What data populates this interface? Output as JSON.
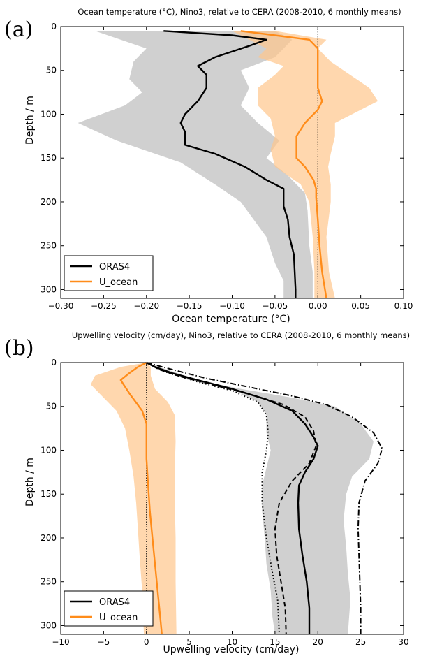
{
  "chart_data": [
    {
      "panel_label": "(a)",
      "type": "line",
      "title": "Ocean temperature (°C), Nino3, relative to CERA (2008-2010, 6 monthly means)",
      "xlabel": "Ocean temperature (°C)",
      "ylabel": "Depth / m",
      "xlim": [
        -0.3,
        0.1
      ],
      "ylim": [
        310,
        0
      ],
      "xticks": [
        -0.3,
        -0.25,
        -0.2,
        -0.15,
        -0.1,
        -0.05,
        0.0,
        0.05,
        0.1
      ],
      "xtick_labels": [
        "−0.30",
        "−0.25",
        "−0.20",
        "−0.15",
        "−0.10",
        "−0.05",
        "0.00",
        "0.05",
        "0.10"
      ],
      "yticks": [
        0,
        50,
        100,
        150,
        200,
        250,
        300
      ],
      "ytick_labels": [
        "0",
        "50",
        "100",
        "150",
        "200",
        "250",
        "300"
      ],
      "zero_line": 0,
      "legend_position": "lower-left",
      "colors": {
        "ORAS4": "#000000",
        "U_ocean": "#ff8c1a",
        "ORAS4_band": "#c8c8c8",
        "U_ocean_band": "#ffc68c"
      },
      "series": [
        {
          "name": "ORAS4",
          "line": [
            [
              -0.18,
              5
            ],
            [
              -0.1,
              10
            ],
            [
              -0.06,
              15
            ],
            [
              -0.08,
              22
            ],
            [
              -0.12,
              35
            ],
            [
              -0.14,
              45
            ],
            [
              -0.13,
              55
            ],
            [
              -0.13,
              70
            ],
            [
              -0.14,
              85
            ],
            [
              -0.155,
              100
            ],
            [
              -0.16,
              110
            ],
            [
              -0.155,
              120
            ],
            [
              -0.155,
              135
            ],
            [
              -0.12,
              145
            ],
            [
              -0.085,
              160
            ],
            [
              -0.06,
              175
            ],
            [
              -0.04,
              185
            ],
            [
              -0.04,
              195
            ],
            [
              -0.04,
              205
            ],
            [
              -0.035,
              220
            ],
            [
              -0.033,
              240
            ],
            [
              -0.028,
              260
            ],
            [
              -0.027,
              280
            ],
            [
              -0.026,
              300
            ],
            [
              -0.026,
              310
            ]
          ],
          "band_left": [
            [
              -0.26,
              5
            ],
            [
              -0.2,
              25
            ],
            [
              -0.215,
              40
            ],
            [
              -0.22,
              60
            ],
            [
              -0.205,
              75
            ],
            [
              -0.225,
              90
            ],
            [
              -0.28,
              110
            ],
            [
              -0.235,
              130
            ],
            [
              -0.16,
              155
            ],
            [
              -0.12,
              180
            ],
            [
              -0.09,
              200
            ],
            [
              -0.06,
              240
            ],
            [
              -0.05,
              270
            ],
            [
              -0.04,
              290
            ],
            [
              -0.04,
              310
            ]
          ],
          "band_right": [
            [
              -0.05,
              5
            ],
            [
              -0.03,
              15
            ],
            [
              -0.04,
              25
            ],
            [
              -0.05,
              35
            ],
            [
              -0.09,
              50
            ],
            [
              -0.08,
              70
            ],
            [
              -0.09,
              90
            ],
            [
              -0.07,
              110
            ],
            [
              -0.045,
              130
            ],
            [
              -0.06,
              150
            ],
            [
              -0.035,
              170
            ],
            [
              -0.015,
              190
            ],
            [
              -0.012,
              210
            ],
            [
              -0.01,
              250
            ],
            [
              -0.006,
              280
            ],
            [
              -0.006,
              310
            ]
          ]
        },
        {
          "name": "U_ocean",
          "line": [
            [
              -0.09,
              5
            ],
            [
              -0.05,
              10
            ],
            [
              -0.01,
              15
            ],
            [
              0.0,
              25
            ],
            [
              0.0,
              35
            ],
            [
              0.0,
              50
            ],
            [
              0.0,
              70
            ],
            [
              0.005,
              85
            ],
            [
              0.0,
              95
            ],
            [
              -0.015,
              110
            ],
            [
              -0.025,
              125
            ],
            [
              -0.025,
              140
            ],
            [
              -0.025,
              150
            ],
            [
              -0.015,
              160
            ],
            [
              -0.005,
              175
            ],
            [
              -0.002,
              185
            ],
            [
              -0.002,
              195
            ],
            [
              0.0,
              220
            ],
            [
              0.002,
              250
            ],
            [
              0.005,
              280
            ],
            [
              0.01,
              310
            ]
          ],
          "band_left": [
            [
              -0.1,
              5
            ],
            [
              -0.08,
              15
            ],
            [
              -0.06,
              25
            ],
            [
              -0.07,
              35
            ],
            [
              -0.04,
              45
            ],
            [
              -0.05,
              55
            ],
            [
              -0.07,
              70
            ],
            [
              -0.07,
              90
            ],
            [
              -0.055,
              105
            ],
            [
              -0.05,
              125
            ],
            [
              -0.055,
              140
            ],
            [
              -0.05,
              160
            ],
            [
              -0.02,
              180
            ],
            [
              -0.01,
              200
            ],
            [
              -0.006,
              240
            ],
            [
              -0.004,
              280
            ],
            [
              -0.004,
              310
            ]
          ],
          "band_right": [
            [
              -0.05,
              5
            ],
            [
              0.01,
              15
            ],
            [
              0.0,
              25
            ],
            [
              0.015,
              40
            ],
            [
              0.03,
              50
            ],
            [
              0.06,
              70
            ],
            [
              0.07,
              85
            ],
            [
              0.05,
              95
            ],
            [
              0.02,
              110
            ],
            [
              0.02,
              125
            ],
            [
              0.015,
              145
            ],
            [
              0.012,
              160
            ],
            [
              0.015,
              180
            ],
            [
              0.015,
              200
            ],
            [
              0.01,
              240
            ],
            [
              0.013,
              280
            ],
            [
              0.02,
              310
            ]
          ]
        }
      ]
    },
    {
      "panel_label": "(b)",
      "type": "line",
      "title": "Upwelling velocity (cm/day), Nino3, relative to CERA (2008-2010, 6 monthly means)",
      "xlabel": "Upwelling velocity (cm/day)",
      "ylabel": "Depth / m",
      "xlim": [
        -10,
        30
      ],
      "ylim": [
        310,
        0
      ],
      "xticks": [
        -10,
        -5,
        0,
        5,
        10,
        15,
        20,
        25,
        30
      ],
      "xtick_labels": [
        "−10",
        "−5",
        "0",
        "5",
        "10",
        "15",
        "20",
        "25",
        "30"
      ],
      "yticks": [
        0,
        50,
        100,
        150,
        200,
        250,
        300
      ],
      "ytick_labels": [
        "0",
        "50",
        "100",
        "150",
        "200",
        "250",
        "300"
      ],
      "zero_line": 0,
      "legend_position": "lower-left",
      "colors": {
        "ORAS4": "#000000",
        "U_ocean": "#ff8c1a",
        "ORAS4_band": "#c8c8c8",
        "U_ocean_band": "#ffc68c"
      },
      "series": [
        {
          "name": "ORAS4",
          "line": [
            [
              0,
              0
            ],
            [
              1,
              5
            ],
            [
              3,
              12
            ],
            [
              6,
              20
            ],
            [
              10,
              30
            ],
            [
              14,
              42
            ],
            [
              17,
              55
            ],
            [
              18.5,
              70
            ],
            [
              19.5,
              85
            ],
            [
              20,
              95
            ],
            [
              19.5,
              110
            ],
            [
              18.5,
              125
            ],
            [
              17.8,
              140
            ],
            [
              17.7,
              160
            ],
            [
              17.8,
              190
            ],
            [
              18.2,
              220
            ],
            [
              18.7,
              250
            ],
            [
              19,
              280
            ],
            [
              19,
              310
            ]
          ],
          "band_left": [
            [
              0,
              0
            ],
            [
              2,
              10
            ],
            [
              6,
              20
            ],
            [
              10,
              30
            ],
            [
              13,
              45
            ],
            [
              14,
              60
            ],
            [
              14,
              80
            ],
            [
              14.5,
              100
            ],
            [
              14,
              120
            ],
            [
              13.5,
              140
            ],
            [
              13.5,
              170
            ],
            [
              13.8,
              200
            ],
            [
              14,
              230
            ],
            [
              14.5,
              260
            ],
            [
              14.7,
              290
            ],
            [
              15,
              310
            ]
          ],
          "band_right": [
            [
              0,
              0
            ],
            [
              3,
              10
            ],
            [
              6,
              20
            ],
            [
              11,
              30
            ],
            [
              17,
              40
            ],
            [
              22,
              50
            ],
            [
              25,
              70
            ],
            [
              26.5,
              90
            ],
            [
              26,
              110
            ],
            [
              24,
              130
            ],
            [
              23.3,
              150
            ],
            [
              23,
              180
            ],
            [
              23.3,
              210
            ],
            [
              23.5,
              240
            ],
            [
              23.8,
              270
            ],
            [
              23.5,
              310
            ]
          ]
        },
        {
          "name": "U_ocean",
          "line": [
            [
              0,
              0
            ],
            [
              -1,
              5
            ],
            [
              -2,
              12
            ],
            [
              -3,
              20
            ],
            [
              -2,
              35
            ],
            [
              -0.5,
              55
            ],
            [
              0,
              70
            ],
            [
              0,
              90
            ],
            [
              0,
              110
            ],
            [
              0.2,
              140
            ],
            [
              0.4,
              170
            ],
            [
              0.7,
              200
            ],
            [
              1,
              230
            ],
            [
              1.3,
              260
            ],
            [
              1.6,
              290
            ],
            [
              1.8,
              310
            ]
          ],
          "band_left": [
            [
              0,
              0
            ],
            [
              -3,
              5
            ],
            [
              -6,
              15
            ],
            [
              -6.5,
              25
            ],
            [
              -5,
              40
            ],
            [
              -3.5,
              55
            ],
            [
              -2.5,
              75
            ],
            [
              -2,
              100
            ],
            [
              -1.5,
              130
            ],
            [
              -1.2,
              160
            ],
            [
              -1,
              190
            ],
            [
              -0.8,
              220
            ],
            [
              -0.5,
              260
            ],
            [
              -0.3,
              310
            ]
          ],
          "band_right": [
            [
              0,
              0
            ],
            [
              0.5,
              5
            ],
            [
              0.5,
              15
            ],
            [
              1,
              30
            ],
            [
              2.5,
              45
            ],
            [
              3.3,
              60
            ],
            [
              3.4,
              90
            ],
            [
              3.3,
              120
            ],
            [
              3.3,
              160
            ],
            [
              3.4,
              200
            ],
            [
              3.4,
              250
            ],
            [
              3.5,
              310
            ]
          ]
        },
        {
          "style": "dashed",
          "line": [
            [
              0,
              0
            ],
            [
              1.5,
              8
            ],
            [
              4,
              16
            ],
            [
              8,
              26
            ],
            [
              12,
              36
            ],
            [
              16,
              48
            ],
            [
              18.5,
              62
            ],
            [
              19.5,
              78
            ],
            [
              19.8,
              95
            ],
            [
              19,
              115
            ],
            [
              17,
              135
            ],
            [
              15.5,
              160
            ],
            [
              15,
              190
            ],
            [
              15.2,
              220
            ],
            [
              15.7,
              250
            ],
            [
              16.2,
              280
            ],
            [
              16.3,
              310
            ]
          ]
        },
        {
          "style": "dotted",
          "line": [
            [
              0,
              0
            ],
            [
              2,
              10
            ],
            [
              6,
              22
            ],
            [
              10,
              32
            ],
            [
              13,
              45
            ],
            [
              14,
              60
            ],
            [
              14.2,
              80
            ],
            [
              14,
              100
            ],
            [
              13.5,
              125
            ],
            [
              13.5,
              160
            ],
            [
              14,
              200
            ],
            [
              14.7,
              240
            ],
            [
              15.3,
              270
            ],
            [
              15.5,
              310
            ]
          ]
        },
        {
          "style": "dashdot",
          "line": [
            [
              0,
              0
            ],
            [
              3,
              8
            ],
            [
              7,
              18
            ],
            [
              12,
              28
            ],
            [
              17,
              38
            ],
            [
              21,
              48
            ],
            [
              24,
              62
            ],
            [
              26.5,
              80
            ],
            [
              27.5,
              98
            ],
            [
              27,
              115
            ],
            [
              25.5,
              135
            ],
            [
              24.8,
              160
            ],
            [
              24.7,
              190
            ],
            [
              24.8,
              220
            ],
            [
              24.9,
              250
            ],
            [
              25,
              280
            ],
            [
              25,
              310
            ]
          ]
        }
      ]
    }
  ]
}
